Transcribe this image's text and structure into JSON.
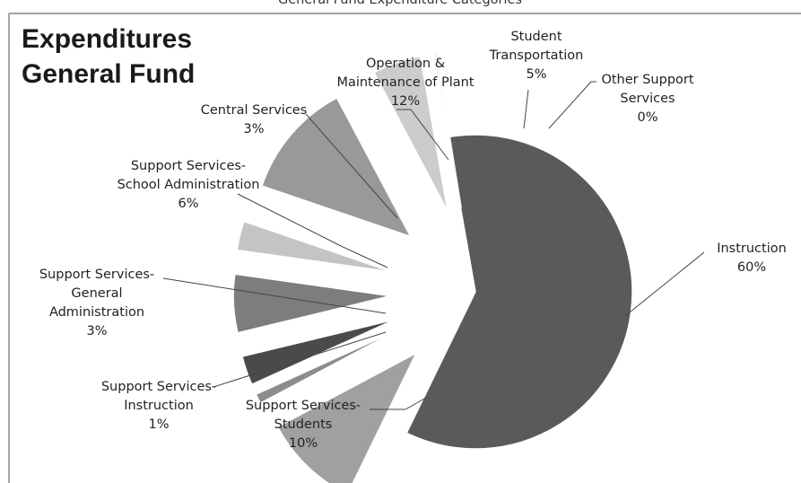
{
  "header": {
    "text": "General Fund Expenditure Categories"
  },
  "chart_data": {
    "type": "pie",
    "title": [
      "Expenditures",
      "General Fund"
    ],
    "legend": "none",
    "slices": [
      {
        "label": [
          "Instruction"
        ],
        "value": 60,
        "pct_label": "60%",
        "color": "#5a5a5a",
        "exploded": false
      },
      {
        "label": [
          "Support Services-",
          "Students"
        ],
        "value": 10,
        "pct_label": "10%",
        "color": "#a0a0a0",
        "exploded": true
      },
      {
        "label": [
          "Support Services-",
          "Instruction"
        ],
        "value": 1,
        "pct_label": "1%",
        "color": "#8c8c8c",
        "exploded": true
      },
      {
        "label": [
          "Support Services-",
          "General",
          "Administration"
        ],
        "value": 3,
        "pct_label": "3%",
        "color": "#4a4a4a",
        "exploded": true
      },
      {
        "label": [
          "Support Services-",
          "School Administration"
        ],
        "value": 6,
        "pct_label": "6%",
        "color": "#7d7d7d",
        "exploded": true
      },
      {
        "label": [
          "Central Services"
        ],
        "value": 3,
        "pct_label": "3%",
        "color": "#c4c4c4",
        "exploded": true
      },
      {
        "label": [
          "Operation &",
          "Maintenance of Plant"
        ],
        "value": 12,
        "pct_label": "12%",
        "color": "#999999",
        "exploded": true
      },
      {
        "label": [
          "Student",
          "Transportation"
        ],
        "value": 5,
        "pct_label": "5%",
        "color": "#cccccc",
        "exploded": true
      },
      {
        "label": [
          "Other Support",
          "Services"
        ],
        "value": 0,
        "pct_label": "0%",
        "color": "#e0e0e0",
        "exploded": true
      }
    ]
  }
}
